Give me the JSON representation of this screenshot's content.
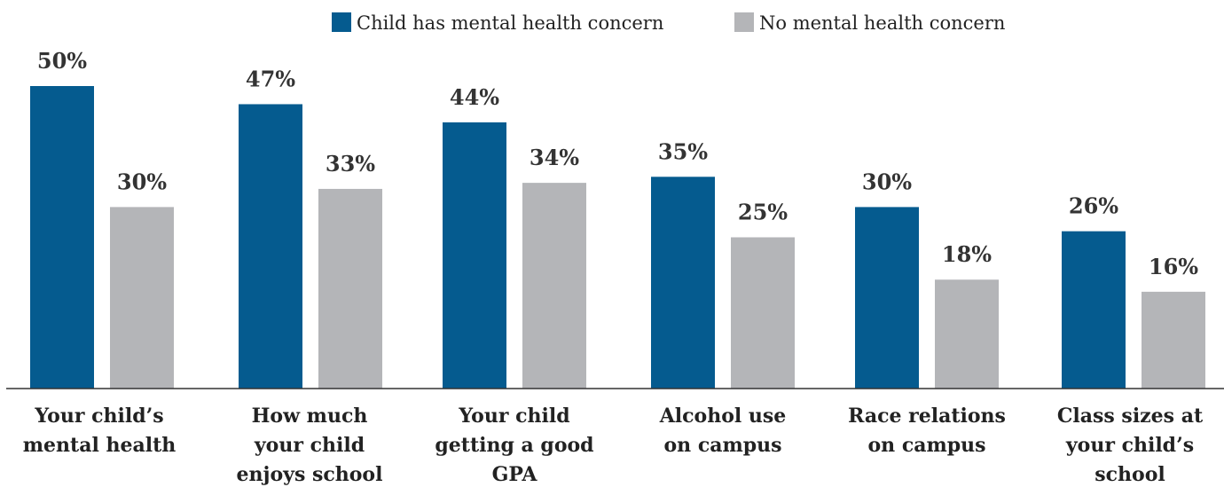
{
  "chart_data": {
    "type": "bar",
    "categories": [
      [
        "Your child’s",
        "mental health"
      ],
      [
        "How much",
        "your child",
        "enjoys school"
      ],
      [
        "Your child",
        "getting a good",
        "GPA"
      ],
      [
        "Alcohol use",
        "on campus"
      ],
      [
        "Race relations",
        "on campus"
      ],
      [
        "Class sizes at",
        "your child’s",
        "school"
      ]
    ],
    "series": [
      {
        "name": "Child has mental health concern",
        "color": "#055b8f",
        "values": [
          50,
          47,
          44,
          35,
          30,
          26
        ],
        "labels": [
          "50%",
          "47%",
          "44%",
          "35%",
          "30%",
          "26%"
        ]
      },
      {
        "name": "No mental health concern",
        "color": "#b4b5b8",
        "values": [
          30,
          33,
          34,
          25,
          18,
          16
        ],
        "labels": [
          "30%",
          "33%",
          "34%",
          "25%",
          "18%",
          "16%"
        ]
      }
    ],
    "ylim": [
      0,
      57
    ],
    "grid": false,
    "legend": "top-center"
  }
}
